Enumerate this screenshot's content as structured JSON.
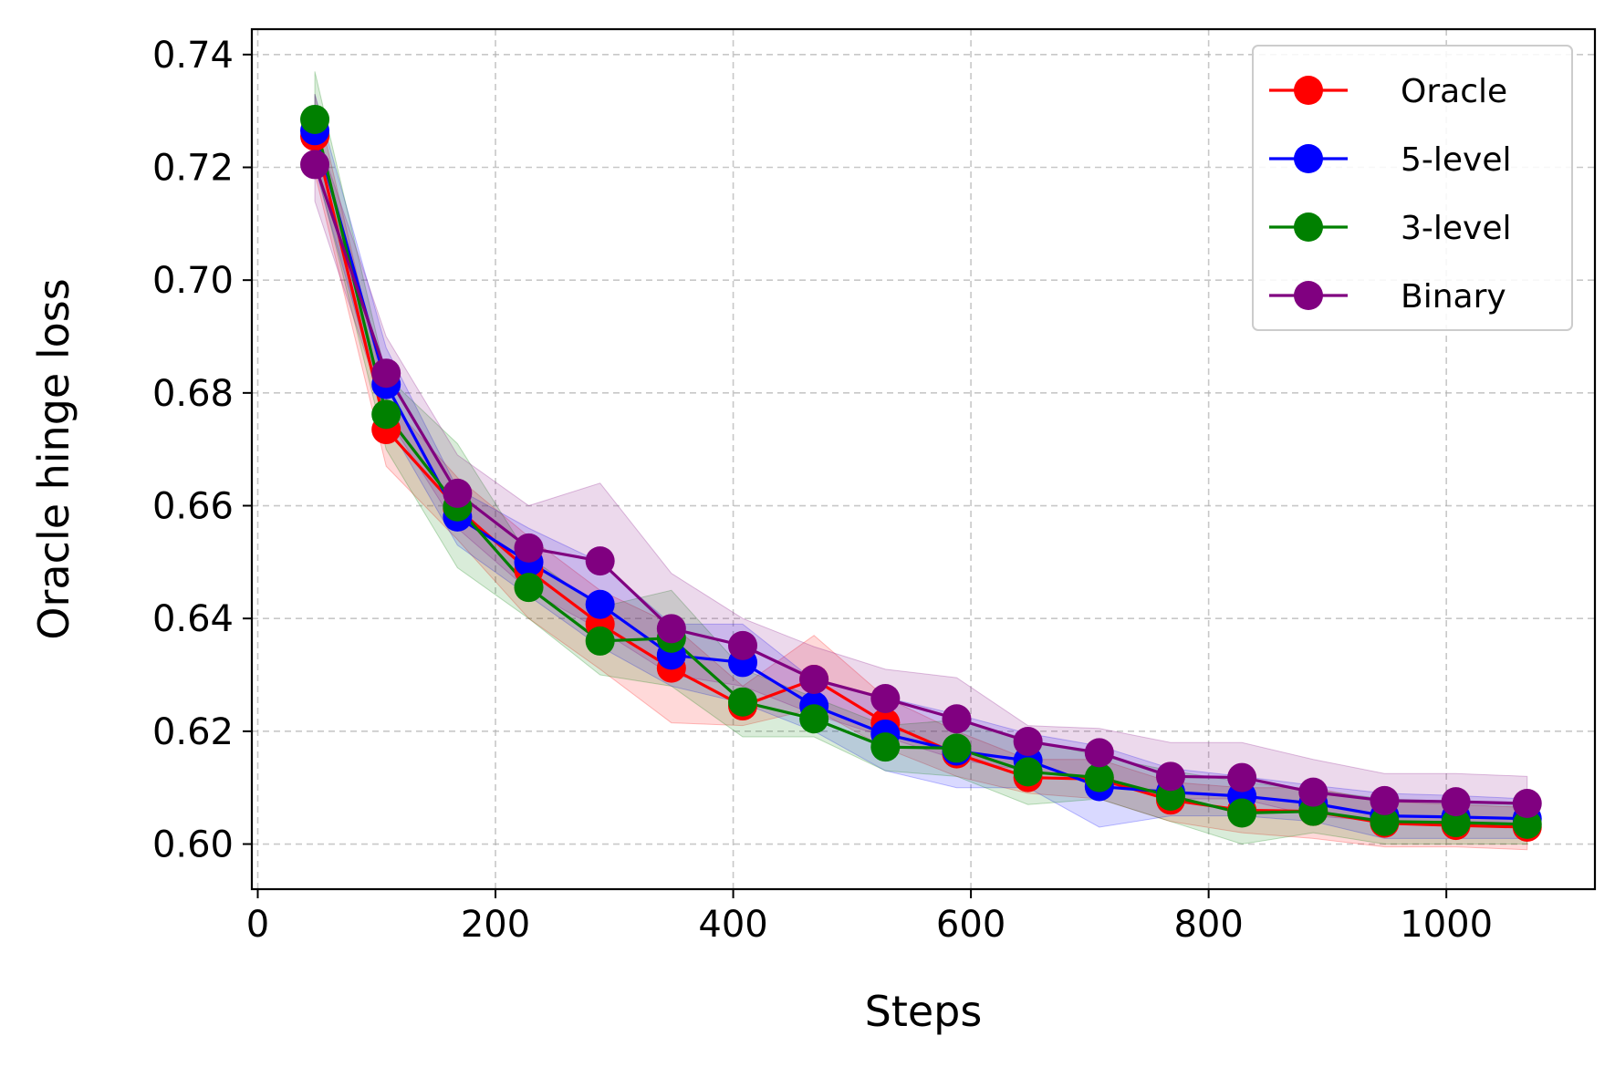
{
  "chart_data": {
    "type": "line",
    "title": "",
    "xlabel": "Steps",
    "ylabel": "Oracle hinge loss",
    "xlim": [
      -5,
      1125
    ],
    "ylim": [
      0.592,
      0.7445
    ],
    "xticks": [
      0,
      200,
      400,
      600,
      800,
      1000
    ],
    "yticks": [
      0.6,
      0.62,
      0.64,
      0.66,
      0.68,
      0.7,
      0.72,
      0.74
    ],
    "ytick_labels": [
      "0.60",
      "0.62",
      "0.64",
      "0.66",
      "0.68",
      "0.70",
      "0.72",
      "0.74"
    ],
    "grid": true,
    "legend_position": "top-right",
    "x": [
      48,
      108,
      168,
      228,
      288,
      348,
      408,
      468,
      528,
      588,
      648,
      708,
      768,
      828,
      888,
      948,
      1008,
      1068
    ],
    "series": [
      {
        "name": "Oracle",
        "color": "#ff0000",
        "values": [
          0.7255,
          0.6735,
          0.6595,
          0.6485,
          0.639,
          0.6312,
          0.6245,
          0.6292,
          0.6215,
          0.616,
          0.6118,
          0.6115,
          0.6078,
          0.606,
          0.6058,
          0.6037,
          0.6033,
          0.603
        ],
        "lower": [
          0.719,
          0.667,
          0.654,
          0.64,
          0.631,
          0.6215,
          0.621,
          0.624,
          0.617,
          0.612,
          0.609,
          0.608,
          0.604,
          0.602,
          0.601,
          0.5995,
          0.5995,
          0.599
        ],
        "upper": [
          0.733,
          0.679,
          0.665,
          0.6545,
          0.645,
          0.639,
          0.628,
          0.637,
          0.626,
          0.62,
          0.615,
          0.615,
          0.611,
          0.61,
          0.61,
          0.6075,
          0.607,
          0.6065
        ]
      },
      {
        "name": "5-level",
        "color": "#0000ff",
        "values": [
          0.7265,
          0.6815,
          0.658,
          0.65,
          0.6425,
          0.6335,
          0.6322,
          0.6245,
          0.6195,
          0.6165,
          0.6148,
          0.6102,
          0.6092,
          0.6085,
          0.6072,
          0.605,
          0.6048,
          0.6045
        ],
        "lower": [
          0.72,
          0.675,
          0.653,
          0.644,
          0.635,
          0.628,
          0.625,
          0.62,
          0.613,
          0.61,
          0.61,
          0.603,
          0.605,
          0.605,
          0.604,
          0.601,
          0.601,
          0.601
        ],
        "upper": [
          0.733,
          0.688,
          0.663,
          0.656,
          0.65,
          0.639,
          0.639,
          0.629,
          0.626,
          0.623,
          0.6196,
          0.6174,
          0.6134,
          0.612,
          0.6104,
          0.609,
          0.6086,
          0.608
        ]
      },
      {
        "name": "3-level",
        "color": "#008000",
        "values": [
          0.7285,
          0.6762,
          0.6598,
          0.6455,
          0.636,
          0.6365,
          0.6252,
          0.6222,
          0.6172,
          0.617,
          0.6128,
          0.6118,
          0.6085,
          0.6055,
          0.6058,
          0.604,
          0.6038,
          0.6035
        ],
        "lower": [
          0.721,
          0.67,
          0.649,
          0.64,
          0.63,
          0.628,
          0.619,
          0.619,
          0.613,
          0.612,
          0.607,
          0.608,
          0.604,
          0.6,
          0.602,
          0.6,
          0.6,
          0.6
        ],
        "upper": [
          0.737,
          0.683,
          0.671,
          0.651,
          0.642,
          0.645,
          0.631,
          0.626,
          0.621,
          0.622,
          0.6186,
          0.6156,
          0.613,
          0.611,
          0.6096,
          0.608,
          0.6076,
          0.607
        ]
      },
      {
        "name": "Binary",
        "color": "#800080",
        "values": [
          0.7205,
          0.6835,
          0.6622,
          0.6525,
          0.6502,
          0.6382,
          0.6352,
          0.6292,
          0.6258,
          0.6222,
          0.6182,
          0.6162,
          0.612,
          0.6118,
          0.6092,
          0.6077,
          0.6075,
          0.6072
        ],
        "lower": [
          0.714,
          0.676,
          0.656,
          0.645,
          0.638,
          0.63,
          0.628,
          0.623,
          0.619,
          0.615,
          0.613,
          0.611,
          0.608,
          0.608,
          0.605,
          0.604,
          0.604,
          0.6035
        ],
        "upper": [
          0.727,
          0.69,
          0.669,
          0.66,
          0.664,
          0.648,
          0.64,
          0.635,
          0.631,
          0.6295,
          0.621,
          0.6205,
          0.618,
          0.618,
          0.615,
          0.6125,
          0.6125,
          0.612
        ]
      }
    ]
  }
}
